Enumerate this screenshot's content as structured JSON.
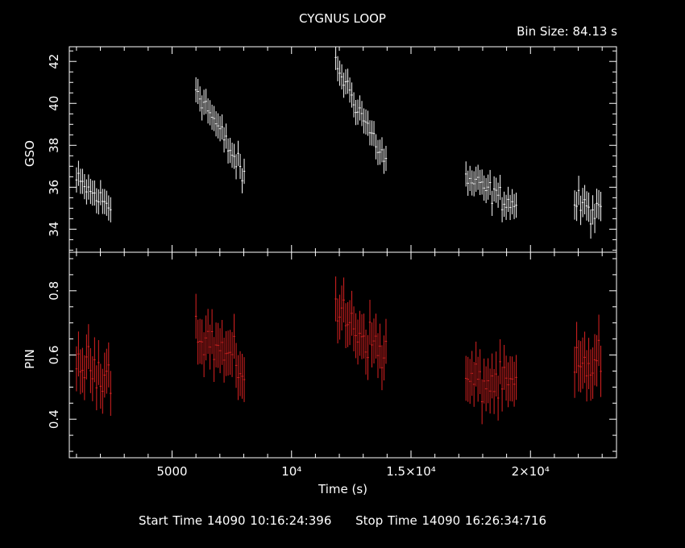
{
  "title": "CYGNUS LOOP",
  "bin_size": "Bin Size: 84.13 s",
  "start_time": "Start Time 14090 10:16:24:396",
  "stop_time": "Stop Time 14090 16:26:34:716",
  "colors": {
    "gso": "#ffffff",
    "pin": "#dd2222",
    "axes": "#ffffff",
    "background": "#000000"
  },
  "chart_data": [
    {
      "type": "scatter",
      "ylabel": "GSO",
      "xlim": [
        700,
        23600
      ],
      "ylim": [
        32.9,
        42.7
      ],
      "yticks": [
        34,
        36,
        38,
        40,
        42
      ],
      "yticklabels": [
        "34",
        "36",
        "38",
        "40",
        "42"
      ],
      "segments": [
        {
          "x_start": 1000,
          "x_end": 2400,
          "y_start": 36.3,
          "y_end": 35.0,
          "err": 0.6
        },
        {
          "x_start": 6000,
          "x_end": 8050,
          "y_start": 40.8,
          "y_end": 36.5,
          "err": 0.6
        },
        {
          "x_start": 11850,
          "x_end": 13950,
          "y_start": 41.9,
          "y_end": 37.2,
          "err": 0.6
        },
        {
          "x_start": 17300,
          "x_end": 19400,
          "y_start": 36.4,
          "y_end": 35.1,
          "err": 0.6
        },
        {
          "x_start": 21850,
          "x_end": 22950,
          "y_start": 35.3,
          "y_end": 34.6,
          "err": 0.7
        }
      ]
    },
    {
      "type": "scatter",
      "ylabel": "PIN",
      "xlabel": "Time (s)",
      "xlim": [
        700,
        23600
      ],
      "ylim": [
        0.28,
        0.92
      ],
      "xticks": [
        5000,
        10000,
        15000,
        20000
      ],
      "xticklabels": [
        "5000",
        "10⁴",
        "1.5×10⁴",
        "2×10⁴"
      ],
      "yticks": [
        0.4,
        0.6,
        0.8
      ],
      "yticklabels": [
        "0.4",
        "0.6",
        "0.8"
      ],
      "segments": [
        {
          "x_start": 1000,
          "x_end": 2400,
          "y_start": 0.57,
          "y_end": 0.55,
          "err": 0.07
        },
        {
          "x_start": 6000,
          "x_end": 8050,
          "y_start": 0.68,
          "y_end": 0.55,
          "err": 0.07
        },
        {
          "x_start": 11850,
          "x_end": 13950,
          "y_start": 0.74,
          "y_end": 0.6,
          "err": 0.07
        },
        {
          "x_start": 17300,
          "x_end": 19400,
          "y_start": 0.52,
          "y_end": 0.5,
          "err": 0.07
        },
        {
          "x_start": 21850,
          "x_end": 22950,
          "y_start": 0.55,
          "y_end": 0.58,
          "err": 0.08
        }
      ]
    }
  ]
}
